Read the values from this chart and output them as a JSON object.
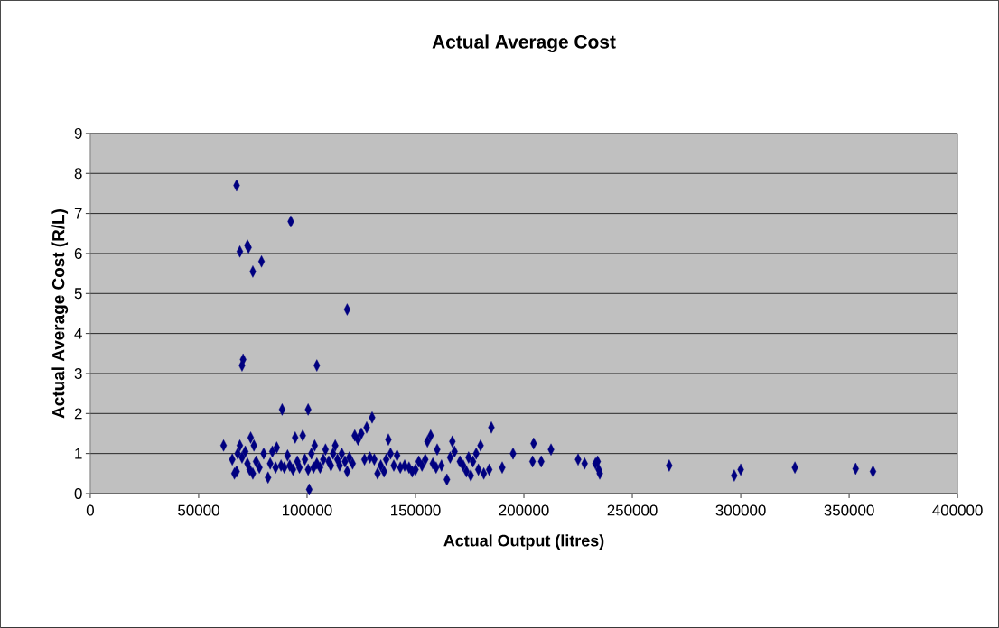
{
  "chart_data": {
    "type": "scatter",
    "title": "Actual Average Cost",
    "xlabel": "Actual Output (litres)",
    "ylabel": "Actual Average Cost (R/L)",
    "xlim": [
      0,
      400000
    ],
    "xticks": [
      0,
      50000,
      100000,
      150000,
      200000,
      250000,
      300000,
      350000,
      400000
    ],
    "ylim": [
      0,
      9
    ],
    "yticks": [
      0,
      1,
      2,
      3,
      4,
      5,
      6,
      7,
      8,
      9
    ],
    "grid": "y",
    "marker": "diamond",
    "series": [
      {
        "color": "#000080",
        "x": [
          67500,
          92500,
          69000,
          72500,
          73000,
          79000,
          75000,
          118500,
          70500,
          70000,
          104500,
          88500,
          100500,
          130000,
          185000,
          184000,
          190000,
          195000,
          204500,
          204000,
          208000,
          212500,
          225000,
          228000,
          233000,
          234000,
          234500,
          235000,
          267000,
          297000,
          300000,
          325000,
          353000,
          361000,
          61500,
          65500,
          66500,
          67500,
          68000,
          69000,
          70000,
          71500,
          72500,
          73500,
          74000,
          75000,
          75500,
          76500,
          78000,
          80000,
          82000,
          83000,
          84000,
          85500,
          86000,
          88000,
          89500,
          91000,
          92000,
          93500,
          94500,
          95500,
          96500,
          98000,
          99000,
          100500,
          101000,
          102000,
          103000,
          103500,
          104500,
          106000,
          107500,
          108500,
          110000,
          111000,
          112000,
          113000,
          114000,
          115000,
          116000,
          117500,
          118500,
          119500,
          121000,
          122000,
          123500,
          125000,
          126500,
          127500,
          129000,
          131000,
          132500,
          134000,
          135500,
          136500,
          137500,
          138500,
          140000,
          141500,
          143000,
          145000,
          147000,
          148500,
          150000,
          151500,
          153000,
          154500,
          155500,
          157000,
          158000,
          159500,
          160000,
          162000,
          164500,
          166000,
          167000,
          168000,
          170500,
          172000,
          173500,
          174500,
          175500,
          176500,
          178000,
          179000,
          180000,
          181500
        ],
        "values": [
          7.7,
          6.8,
          6.05,
          6.2,
          6.15,
          5.8,
          5.55,
          4.6,
          3.35,
          3.2,
          3.2,
          2.1,
          2.1,
          1.9,
          1.65,
          0.6,
          0.65,
          1.0,
          1.25,
          0.8,
          0.8,
          1.1,
          0.85,
          0.75,
          0.75,
          0.8,
          0.6,
          0.5,
          0.7,
          0.45,
          0.6,
          0.65,
          0.62,
          0.55,
          1.2,
          0.85,
          0.5,
          0.55,
          1.0,
          1.2,
          0.9,
          1.05,
          0.75,
          0.6,
          1.4,
          0.5,
          1.2,
          0.8,
          0.65,
          1.0,
          0.4,
          0.75,
          1.05,
          0.65,
          1.15,
          0.7,
          0.65,
          0.95,
          0.7,
          0.6,
          1.4,
          0.8,
          0.65,
          1.45,
          0.85,
          0.6,
          0.1,
          1.0,
          0.65,
          1.2,
          0.75,
          0.65,
          0.85,
          1.1,
          0.8,
          0.7,
          1.0,
          1.2,
          0.85,
          0.7,
          1.0,
          0.8,
          0.55,
          0.9,
          0.75,
          1.45,
          1.35,
          1.5,
          0.85,
          1.65,
          0.9,
          0.85,
          0.5,
          0.7,
          0.55,
          0.85,
          1.35,
          1.0,
          0.7,
          0.95,
          0.65,
          0.7,
          0.65,
          0.55,
          0.6,
          0.8,
          0.7,
          0.85,
          1.3,
          1.45,
          0.75,
          0.65,
          1.1,
          0.7,
          0.35,
          0.9,
          1.3,
          1.05,
          0.8,
          0.7,
          0.55,
          0.9,
          0.45,
          0.8,
          1.0,
          0.6,
          1.2,
          0.5
        ]
      }
    ]
  }
}
